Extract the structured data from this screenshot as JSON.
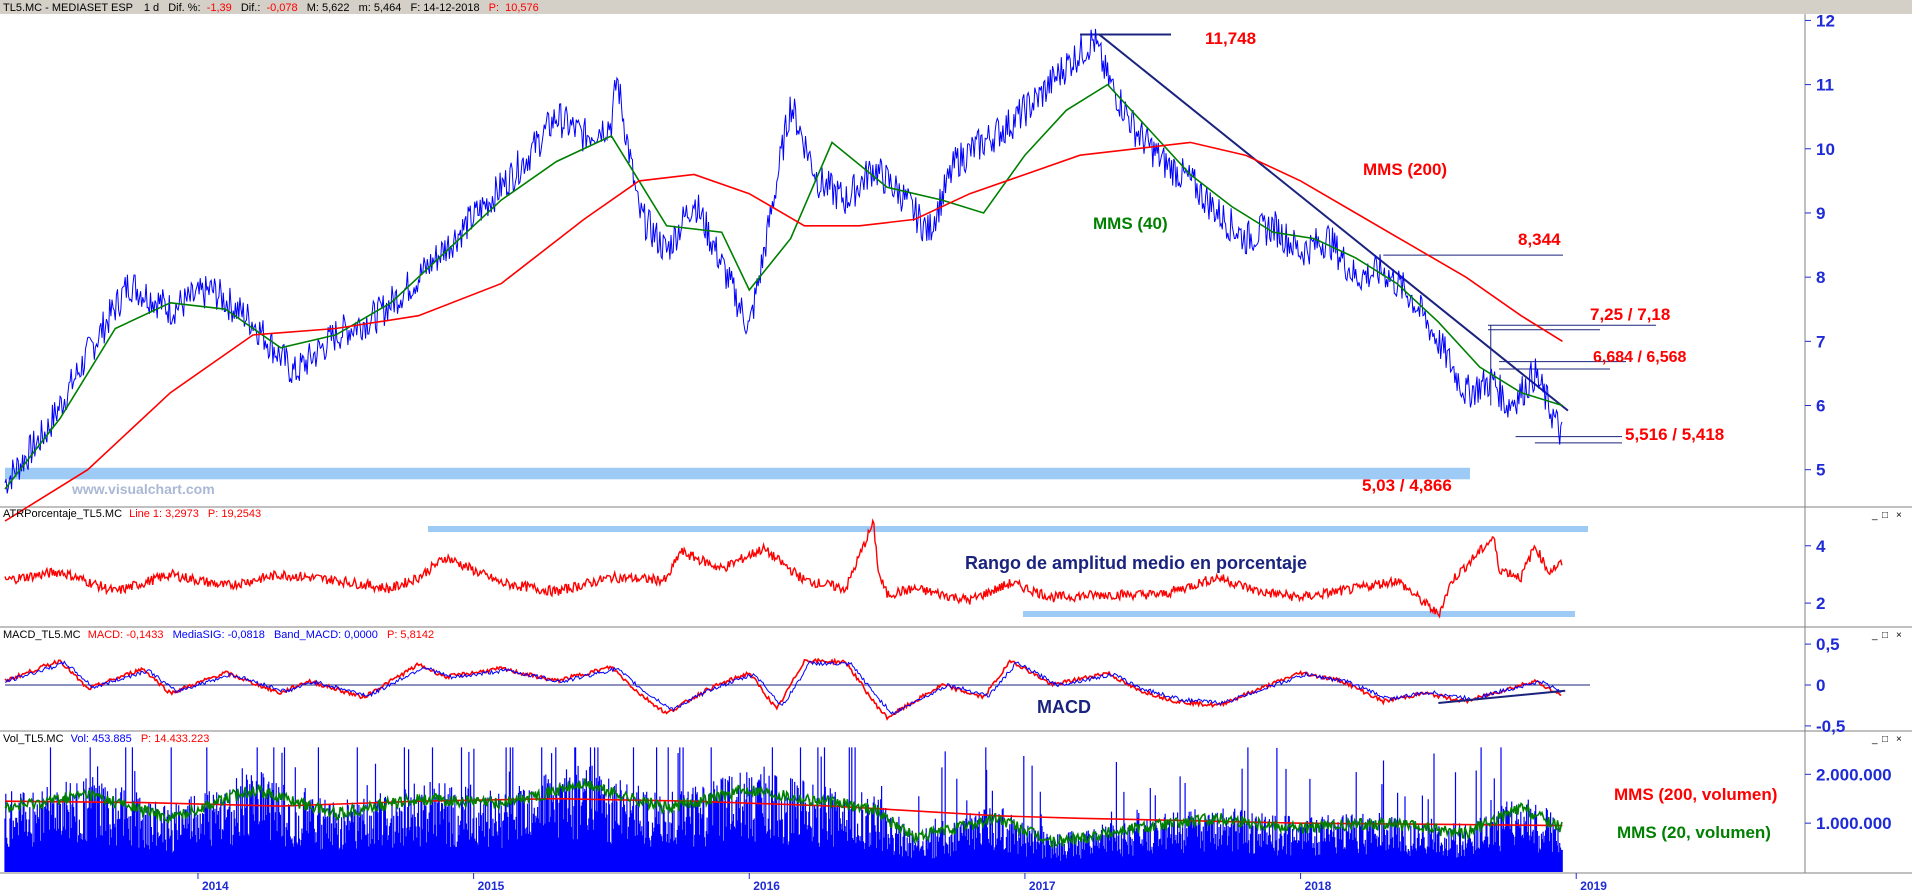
{
  "header": {
    "symbol": "TL5.MC - MEDIASET ESP",
    "timeframe": "1 d",
    "dif_pct_label": "Dif. %:",
    "dif_pct_value": "-1,39",
    "dif_label": "Dif.:",
    "dif_value": "-0,078",
    "max_label": "M: 5,622",
    "min_label": "m: 5,464",
    "date_label": "F: 14-12-2018",
    "price_label": "P:",
    "price_value": "10,576"
  },
  "watermark": "www.visualchart.com",
  "colors": {
    "price": "#0000ff",
    "mms40": "#008000",
    "mms200": "#ff0000",
    "axis": "#1f2bd6",
    "support_band": "#9ecbf5",
    "annotation_red": "#ff0000",
    "annotation_navy": "#1a237e"
  },
  "chart_data": [
    {
      "type": "line",
      "title": "TL5.MC - MEDIASET ESP",
      "y_ticks": [
        5,
        6,
        7,
        8,
        9,
        10,
        11,
        12
      ],
      "ylim": [
        4.45,
        12.1
      ],
      "x_ticks": [
        "2014",
        "2015",
        "2016",
        "2017",
        "2018",
        "2019"
      ],
      "x_tick_times": [
        2014.0,
        2015.0,
        2016.0,
        2017.0,
        2018.0,
        2019.0
      ],
      "xlim": [
        2013.3,
        2019.05
      ],
      "series": [
        {
          "name": "",
          "color": "#0000ff",
          "x": [
            2013.3,
            2013.45,
            2013.6,
            2013.75,
            2013.9,
            2014.05,
            2014.2,
            2014.35,
            2014.5,
            2014.65,
            2014.8,
            2014.95,
            2015.1,
            2015.2,
            2015.3,
            2015.4,
            2015.5,
            2015.52,
            2015.6,
            2015.7,
            2015.8,
            2015.9,
            2016.0,
            2016.05,
            2016.15,
            2016.25,
            2016.35,
            2016.45,
            2016.55,
            2016.65,
            2016.75,
            2016.85,
            2016.95,
            2017.05,
            2017.15,
            2017.25,
            2017.3,
            2017.4,
            2017.5,
            2017.6,
            2017.7,
            2017.8,
            2017.9,
            2018.0,
            2018.1,
            2018.2,
            2018.3,
            2018.4,
            2018.5,
            2018.6,
            2018.7,
            2018.75,
            2018.8,
            2018.85,
            2018.9,
            2018.95
          ],
          "y": [
            4.8,
            5.6,
            6.8,
            7.9,
            7.5,
            7.8,
            7.3,
            6.5,
            7.1,
            7.4,
            8.0,
            8.7,
            9.4,
            9.9,
            10.5,
            10.2,
            10.4,
            11.1,
            9.0,
            8.4,
            9.2,
            8.2,
            7.2,
            8.3,
            10.7,
            9.5,
            9.2,
            9.7,
            9.3,
            8.7,
            9.8,
            10.1,
            10.4,
            10.8,
            11.3,
            11.7,
            11.1,
            10.3,
            9.8,
            9.5,
            9.0,
            8.6,
            8.8,
            8.4,
            8.6,
            8.0,
            8.1,
            7.7,
            7.0,
            6.2,
            6.4,
            6.0,
            6.2,
            6.5,
            6.0,
            5.5
          ]
        },
        {
          "name": "MMS (40)",
          "color": "#008000",
          "x": [
            2013.3,
            2013.5,
            2013.7,
            2013.9,
            2014.1,
            2014.3,
            2014.5,
            2014.7,
            2014.9,
            2015.1,
            2015.3,
            2015.5,
            2015.7,
            2015.9,
            2016.0,
            2016.15,
            2016.3,
            2016.5,
            2016.7,
            2016.85,
            2017.0,
            2017.15,
            2017.3,
            2017.45,
            2017.6,
            2017.75,
            2017.9,
            2018.05,
            2018.2,
            2018.35,
            2018.5,
            2018.65,
            2018.8,
            2018.95
          ],
          "y": [
            4.7,
            5.8,
            7.2,
            7.6,
            7.5,
            6.9,
            7.1,
            7.6,
            8.4,
            9.2,
            9.8,
            10.2,
            8.8,
            8.7,
            7.8,
            8.6,
            10.1,
            9.4,
            9.2,
            9.0,
            9.9,
            10.6,
            11.0,
            10.3,
            9.6,
            9.1,
            8.7,
            8.6,
            8.3,
            7.9,
            7.3,
            6.6,
            6.2,
            6.0
          ]
        },
        {
          "name": "MMS (200)",
          "color": "#ff0000",
          "x": [
            2013.3,
            2013.6,
            2013.9,
            2014.2,
            2014.5,
            2014.8,
            2015.1,
            2015.4,
            2015.6,
            2015.8,
            2016.0,
            2016.2,
            2016.4,
            2016.6,
            2016.8,
            2017.0,
            2017.2,
            2017.4,
            2017.6,
            2017.8,
            2018.0,
            2018.2,
            2018.4,
            2018.6,
            2018.8,
            2018.95
          ],
          "y": [
            4.2,
            5.0,
            6.2,
            7.1,
            7.2,
            7.4,
            7.9,
            8.9,
            9.5,
            9.6,
            9.3,
            8.8,
            8.8,
            8.9,
            9.3,
            9.6,
            9.9,
            10.0,
            10.1,
            9.9,
            9.5,
            9.0,
            8.5,
            8.0,
            7.4,
            7.0
          ]
        }
      ],
      "annotations": {
        "high": "11,748",
        "res_8344": "8,344",
        "res_725": "7,25 / 7,18",
        "res_6684": "6,684 / 6,568",
        "sup_5516": "5,516 / 5,418",
        "sup_503": "5,03 / 4,866",
        "label_mms200": "MMS (200)",
        "label_mms40": "MMS (40)"
      }
    },
    {
      "type": "line",
      "title": "ATRPorcentaje_TL5.MC",
      "header_line": "Line 1: 3,2973",
      "header_p": "P: 19,2543",
      "y_ticks": [
        2,
        4
      ],
      "ylim": [
        1.2,
        4.9
      ],
      "annotation": "Rango de amplitud medio en porcentaje",
      "series": [
        {
          "name": "",
          "color": "#ff0000",
          "x": [
            2013.3,
            2013.5,
            2013.7,
            2013.9,
            2014.1,
            2014.3,
            2014.5,
            2014.7,
            2014.8,
            2014.9,
            2015.1,
            2015.3,
            2015.5,
            2015.7,
            2015.75,
            2015.9,
            2016.05,
            2016.2,
            2016.35,
            2016.45,
            2016.47,
            2016.5,
            2016.6,
            2016.8,
            2016.95,
            2017.1,
            2017.3,
            2017.5,
            2017.7,
            2017.85,
            2018.0,
            2018.2,
            2018.35,
            2018.5,
            2018.55,
            2018.7,
            2018.72,
            2018.8,
            2018.85,
            2018.9,
            2018.95
          ],
          "y": [
            2.8,
            3.1,
            2.4,
            3.0,
            2.6,
            3.0,
            2.8,
            2.5,
            2.9,
            3.6,
            2.7,
            2.4,
            2.9,
            2.8,
            3.8,
            3.2,
            3.9,
            2.8,
            2.5,
            4.8,
            3.0,
            2.3,
            2.5,
            2.1,
            2.7,
            2.2,
            2.3,
            2.3,
            2.9,
            2.4,
            2.2,
            2.5,
            2.8,
            1.6,
            2.8,
            4.3,
            3.2,
            2.9,
            4.0,
            3.1,
            3.4
          ]
        }
      ]
    },
    {
      "type": "line",
      "title": "MACD_TL5.MC",
      "header_macd": "MACD: -0,1433",
      "header_sig": "MediaSIG: -0,0818",
      "header_band": "Band_MACD: 0,0000",
      "header_p": "P: 5,8142",
      "y_ticks": [
        "0,5",
        "0",
        "-0,5"
      ],
      "ylim": [
        -0.55,
        0.55
      ],
      "annotation": "MACD",
      "series": [
        {
          "name": "",
          "color": "#ff0000",
          "x": [
            2013.3,
            2013.5,
            2013.6,
            2013.8,
            2013.9,
            2014.1,
            2014.3,
            2014.4,
            2014.6,
            2014.8,
            2014.9,
            2015.1,
            2015.3,
            2015.5,
            2015.6,
            2015.7,
            2015.85,
            2016.0,
            2016.1,
            2016.2,
            2016.35,
            2016.45,
            2016.5,
            2016.7,
            2016.85,
            2016.95,
            2017.1,
            2017.3,
            2017.4,
            2017.55,
            2017.7,
            2017.85,
            2018.0,
            2018.15,
            2018.3,
            2018.45,
            2018.6,
            2018.75,
            2018.85,
            2018.95
          ],
          "y": [
            0.05,
            0.3,
            -0.05,
            0.2,
            -0.1,
            0.15,
            -0.1,
            0.05,
            -0.15,
            0.25,
            0.1,
            0.2,
            0.05,
            0.22,
            -0.1,
            -0.35,
            -0.05,
            0.15,
            -0.3,
            0.3,
            0.28,
            -0.2,
            -0.4,
            0.0,
            -0.15,
            0.3,
            0.0,
            0.15,
            -0.05,
            -0.2,
            -0.25,
            -0.05,
            0.15,
            0.05,
            -0.2,
            -0.1,
            -0.2,
            -0.05,
            0.05,
            -0.14
          ]
        },
        {
          "name": "",
          "color": "#0000ff",
          "x": [
            2013.3,
            2013.52,
            2013.62,
            2013.82,
            2013.92,
            2014.12,
            2014.32,
            2014.42,
            2014.62,
            2014.82,
            2014.92,
            2015.12,
            2015.32,
            2015.52,
            2015.62,
            2015.72,
            2015.87,
            2016.02,
            2016.12,
            2016.22,
            2016.37,
            2016.47,
            2016.52,
            2016.72,
            2016.87,
            2016.97,
            2017.12,
            2017.32,
            2017.42,
            2017.57,
            2017.72,
            2017.87,
            2018.02,
            2018.17,
            2018.32,
            2018.47,
            2018.62,
            2018.77,
            2018.87,
            2018.95
          ],
          "y": [
            0.04,
            0.27,
            -0.03,
            0.18,
            -0.08,
            0.13,
            -0.08,
            0.04,
            -0.13,
            0.22,
            0.09,
            0.18,
            0.04,
            0.2,
            -0.08,
            -0.3,
            -0.04,
            0.13,
            -0.26,
            0.27,
            0.25,
            -0.17,
            -0.35,
            0.0,
            -0.13,
            0.27,
            0.0,
            0.13,
            -0.04,
            -0.18,
            -0.22,
            -0.04,
            0.13,
            0.04,
            -0.17,
            -0.09,
            -0.17,
            -0.04,
            0.04,
            -0.08
          ]
        }
      ]
    },
    {
      "type": "bar",
      "title": "Vol_TL5.MC",
      "header_vol": "Vol: 453.885",
      "header_p": "P: 14.433.223",
      "y_ticks": [
        "1.000.000",
        "2.000.000"
      ],
      "y_tick_values": [
        1000000,
        2000000
      ],
      "ylim": [
        0,
        2600000
      ],
      "series": [
        {
          "name": "MMS (200, volumen)",
          "color": "#ff0000",
          "x": [
            2013.3,
            2013.8,
            2014.3,
            2014.8,
            2015.3,
            2015.8,
            2016.3,
            2016.6,
            2016.9,
            2017.2,
            2017.6,
            2018.0,
            2018.4,
            2018.95
          ],
          "y": [
            1450000,
            1420000,
            1350000,
            1450000,
            1500000,
            1450000,
            1350000,
            1250000,
            1150000,
            1100000,
            1050000,
            1000000,
            980000,
            950000
          ]
        },
        {
          "name": "MMS (20, volumen)",
          "color": "#008000",
          "x": [
            2013.3,
            2013.6,
            2013.9,
            2014.2,
            2014.5,
            2014.8,
            2015.1,
            2015.4,
            2015.7,
            2016.0,
            2016.2,
            2016.45,
            2016.6,
            2016.9,
            2017.1,
            2017.4,
            2017.7,
            2018.0,
            2018.3,
            2018.6,
            2018.8,
            2018.95
          ],
          "y": [
            1300000,
            1600000,
            1100000,
            1700000,
            1200000,
            1500000,
            1400000,
            1800000,
            1300000,
            1700000,
            1500000,
            1300000,
            700000,
            1100000,
            600000,
            900000,
            1100000,
            900000,
            1000000,
            800000,
            1300000,
            900000
          ]
        }
      ],
      "volume_bar_color": "#0000ff"
    }
  ]
}
